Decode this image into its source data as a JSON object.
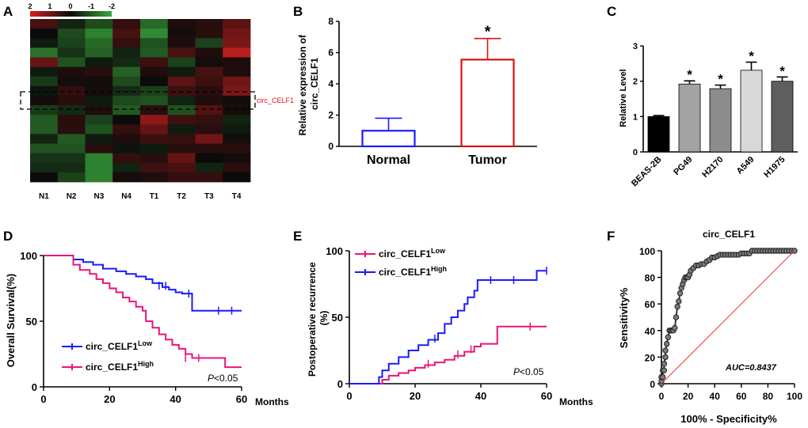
{
  "panel_letters": [
    "A",
    "B",
    "C",
    "D",
    "E",
    "F"
  ],
  "chart_data": [
    {
      "type": "heatmap",
      "panel": "A",
      "columns": [
        "N1",
        "N2",
        "N3",
        "N4",
        "T1",
        "T2",
        "T3",
        "T4"
      ],
      "color_scale": {
        "ticks": [
          "2",
          "1",
          "0",
          "-1",
          "-2"
        ],
        "high_color": "#d42020",
        "mid_color": "#0b0b0b",
        "low_color": "#3aa83a"
      },
      "highlight_label": "circ_CELF1",
      "values": [
        [
          0.6,
          -0.3,
          -0.8,
          0.4,
          -1.2,
          0.2,
          0.3,
          0.8
        ],
        [
          0.0,
          -0.8,
          -1.5,
          0.6,
          -1.6,
          0.1,
          0.3,
          1.0
        ],
        [
          -0.2,
          -0.7,
          -1.2,
          0.4,
          -0.9,
          0.2,
          -0.7,
          1.1
        ],
        [
          -1.3,
          -0.5,
          -1.1,
          -0.3,
          -1.0,
          0.6,
          0.2,
          1.7
        ],
        [
          0.9,
          -0.9,
          -0.2,
          -0.4,
          0.5,
          -0.7,
          0.1,
          0.2
        ],
        [
          -0.2,
          0.2,
          0.3,
          -1.1,
          0.2,
          -0.2,
          0.6,
          0.2
        ],
        [
          -0.6,
          0.1,
          0.1,
          -0.8,
          0.0,
          0.8,
          0.5,
          1.0
        ],
        [
          -0.1,
          0.4,
          0.1,
          -0.4,
          -0.7,
          0.5,
          0.3,
          1.1
        ],
        [
          0.1,
          0.3,
          -0.2,
          -0.8,
          -0.9,
          -0.3,
          0.2,
          0.1
        ],
        [
          -0.6,
          -0.4,
          0.2,
          -1.0,
          0.3,
          -0.9,
          0.7,
          0.1
        ],
        [
          -1.0,
          0.3,
          -0.7,
          0.0,
          1.3,
          0.5,
          0.4,
          -0.3
        ],
        [
          -1.0,
          0.3,
          -0.9,
          0.4,
          0.9,
          -0.2,
          0.3,
          -0.2
        ],
        [
          -0.3,
          -1.0,
          -0.2,
          0.2,
          0.5,
          0.4,
          1.0,
          0.1
        ],
        [
          -0.9,
          -0.9,
          0.3,
          -0.1,
          -0.2,
          0.3,
          0.3,
          0.3
        ],
        [
          -0.5,
          -0.5,
          -1.5,
          0.4,
          0.3,
          0.9,
          0.0,
          0.1
        ],
        [
          -0.4,
          -0.4,
          -1.5,
          -0.3,
          0.5,
          0.6,
          -0.3,
          0.3
        ],
        [
          0.0,
          -0.7,
          -1.5,
          0.1,
          0.2,
          0.4,
          0.4,
          0.0
        ]
      ]
    },
    {
      "type": "bar",
      "panel": "B",
      "categories": [
        "Normal",
        "Tumor"
      ],
      "values": [
        1.0,
        5.55
      ],
      "errors": [
        0.8,
        1.35
      ],
      "colors": [
        "#1a1aff",
        "#e01010"
      ],
      "ylabel": "Relative expression of circ_CELF1",
      "ylim": [
        0,
        8
      ],
      "yticks": [
        0,
        2,
        4,
        6,
        8
      ],
      "significance": [
        "",
        "*"
      ]
    },
    {
      "type": "bar",
      "panel": "C",
      "categories": [
        "BEAS-2B",
        "PG49",
        "H2170",
        "A549",
        "H1975"
      ],
      "values": [
        1.0,
        1.92,
        1.79,
        2.31,
        2.0
      ],
      "errors": [
        0.03,
        0.09,
        0.1,
        0.23,
        0.12
      ],
      "colors": [
        "#000000",
        "#a3a3a3",
        "#8c8c8c",
        "#d9d9d9",
        "#5e5e5e"
      ],
      "ylabel": "Relative Level",
      "ylim": [
        0,
        3
      ],
      "yticks": [
        0,
        1,
        2,
        3
      ],
      "significance": [
        "",
        "*",
        "*",
        "*",
        "*"
      ]
    },
    {
      "type": "line",
      "panel": "D",
      "ylabel": "Overall Survival(%)",
      "xlabel": "Months",
      "xlim": [
        0,
        60
      ],
      "ylim": [
        0,
        100
      ],
      "xticks": [
        0,
        20,
        40,
        60
      ],
      "yticks": [
        0,
        50,
        100
      ],
      "annotation": {
        "italic": "P",
        "rest": "<0.05"
      },
      "series": [
        {
          "name_base": "circ_CELF1",
          "name_sup": "Low",
          "color": "#1a1aff",
          "x": [
            0,
            9,
            12,
            15,
            18,
            22,
            25,
            28,
            31,
            33,
            36,
            38,
            40,
            42,
            45,
            48,
            60
          ],
          "y": [
            100,
            97,
            95,
            93,
            90,
            88,
            86,
            84,
            82,
            79,
            76,
            74,
            72,
            71,
            58,
            58,
            58
          ],
          "censors": [
            [
              35,
              77
            ],
            [
              37,
              77
            ],
            [
              44,
              71
            ],
            [
              53,
              58
            ],
            [
              57,
              58
            ]
          ]
        },
        {
          "name_base": "circ_CELF1",
          "name_sup": "High",
          "color": "#e8157a",
          "x": [
            0,
            9,
            11,
            14,
            16,
            18,
            20,
            22,
            24,
            26,
            28,
            30,
            31,
            33,
            35,
            37,
            39,
            41,
            43,
            45,
            50,
            55,
            60
          ],
          "y": [
            100,
            93,
            89,
            86,
            82,
            79,
            75,
            72,
            68,
            65,
            61,
            58,
            50,
            45,
            40,
            36,
            32,
            29,
            25,
            22,
            22,
            15,
            15
          ],
          "censors": [
            [
              43,
              22
            ],
            [
              47,
              22
            ]
          ]
        }
      ]
    },
    {
      "type": "line",
      "panel": "E",
      "ylabel": "Postoperative recurrence (%)",
      "xlabel": "Months",
      "xlim": [
        0,
        60
      ],
      "ylim": [
        0,
        100
      ],
      "xticks": [
        0,
        20,
        40,
        60
      ],
      "yticks": [
        0,
        50,
        100
      ],
      "annotation": {
        "italic": "P",
        "rest": "<0.05"
      },
      "series": [
        {
          "name_base": "circ_CELF1",
          "name_sup": "Low",
          "color": "#e8157a",
          "x": [
            0,
            10,
            12,
            15,
            18,
            20,
            23,
            26,
            29,
            32,
            35,
            38,
            40,
            45,
            60
          ],
          "y": [
            0,
            3,
            6,
            8,
            10,
            12,
            14,
            16,
            18,
            21,
            24,
            28,
            30,
            43,
            43
          ],
          "censors": [
            [
              24,
              15
            ],
            [
              33,
              22
            ],
            [
              37,
              26
            ],
            [
              55,
              43
            ]
          ]
        },
        {
          "name_base": "circ_CELF1",
          "name_sup": "High",
          "color": "#1a1aff",
          "x": [
            0,
            9,
            10,
            12,
            15,
            18,
            21,
            24,
            27,
            29,
            31,
            33,
            35,
            36,
            38,
            39,
            45,
            55,
            57,
            60
          ],
          "y": [
            0,
            5,
            10,
            15,
            20,
            25,
            29,
            33,
            38,
            45,
            50,
            55,
            60,
            65,
            70,
            78,
            78,
            78,
            85,
            85
          ],
          "censors": [
            [
              26,
              34
            ],
            [
              43,
              78
            ],
            [
              50,
              78
            ],
            [
              60,
              85
            ]
          ]
        }
      ]
    },
    {
      "type": "line",
      "panel": "F",
      "title": "circ_CELF1",
      "xlabel": "100% - Specificity%",
      "ylabel": "Sensitivity%",
      "xlim": [
        0,
        100
      ],
      "ylim": [
        0,
        100
      ],
      "xticks": [
        0,
        20,
        40,
        60,
        80,
        100
      ],
      "yticks": [
        0,
        20,
        40,
        60,
        80,
        100
      ],
      "annotation": "AUC=0.8437",
      "series": [
        {
          "name": "ROC",
          "color": "#333333",
          "x": [
            0,
            0,
            0,
            1,
            1,
            2,
            2,
            3,
            3,
            4,
            5,
            6,
            7,
            8,
            9,
            10,
            11,
            12,
            13,
            14,
            15,
            16,
            17,
            18,
            19,
            20,
            21,
            22,
            24,
            26,
            28,
            30,
            32,
            34,
            36,
            38,
            40,
            42,
            44,
            46,
            48,
            50,
            52,
            54,
            56,
            58,
            60,
            62,
            64,
            66,
            68,
            70,
            72,
            74,
            76,
            78,
            80,
            82,
            84,
            86,
            88,
            90,
            92,
            94,
            96,
            98,
            100
          ],
          "y": [
            0,
            2,
            5,
            5,
            10,
            10,
            15,
            20,
            25,
            30,
            35,
            40,
            40,
            40,
            40,
            42,
            50,
            58,
            62,
            68,
            72,
            75,
            78,
            80,
            80,
            80,
            82,
            85,
            87,
            89,
            89,
            90,
            90,
            92,
            93,
            95,
            95,
            96,
            97,
            97,
            97,
            97,
            97,
            97,
            97,
            97,
            98,
            98,
            98,
            98,
            100,
            100,
            100,
            100,
            100,
            100,
            100,
            100,
            100,
            100,
            100,
            100,
            100,
            100,
            100,
            100,
            100
          ]
        },
        {
          "name": "reference",
          "color": "#ff3030",
          "x": [
            0,
            100
          ],
          "y": [
            0,
            100
          ]
        }
      ]
    }
  ]
}
